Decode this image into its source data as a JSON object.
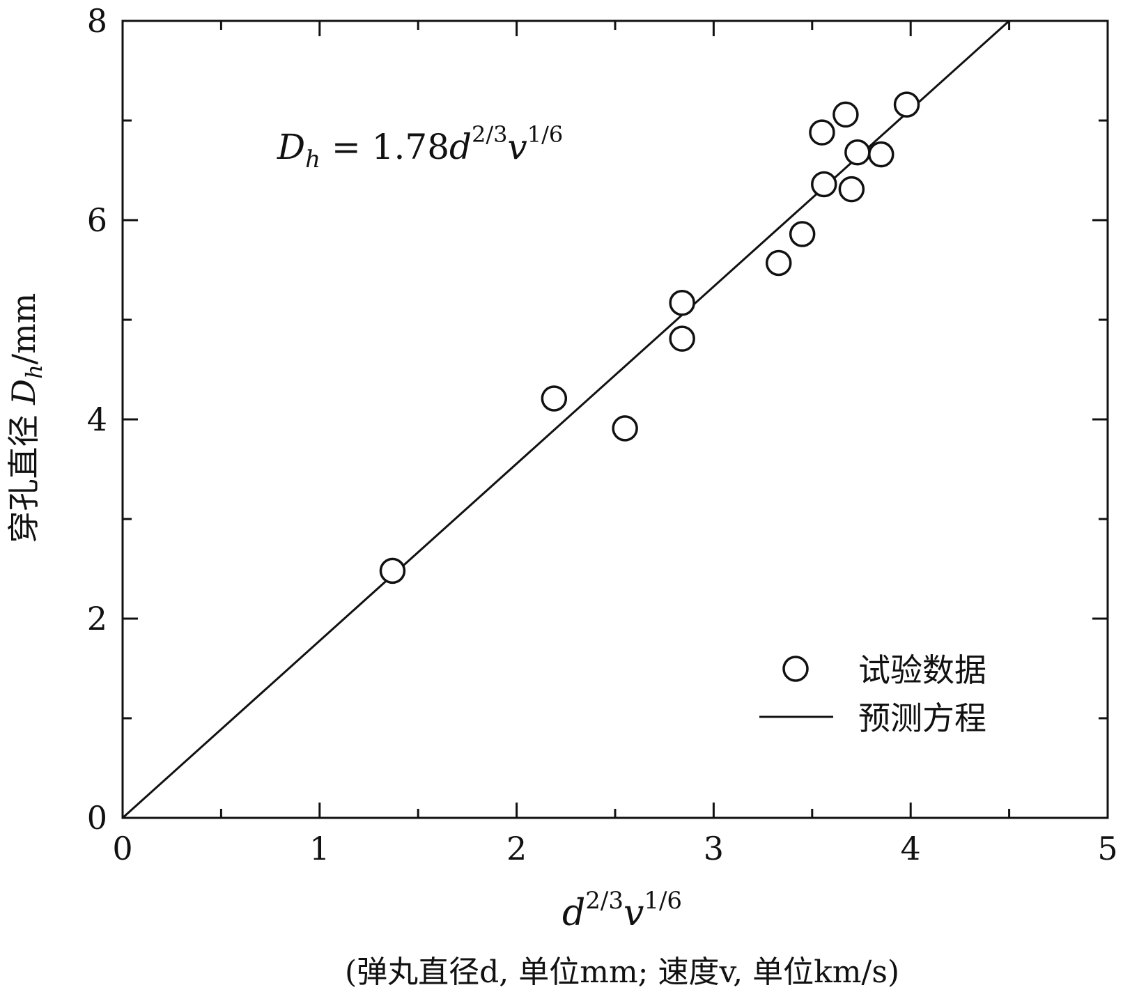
{
  "chart_data": {
    "type": "scatter",
    "title": "",
    "xlim": [
      0,
      5
    ],
    "ylim": [
      0,
      8
    ],
    "x_ticks": [
      0,
      1,
      2,
      3,
      4,
      5
    ],
    "x_minor_ticks": [
      0.5,
      1.5,
      2.5,
      3.5,
      4.5
    ],
    "y_ticks": [
      0,
      2,
      4,
      6,
      8
    ],
    "y_minor_ticks": [
      1,
      3,
      5,
      7
    ],
    "x_tick_labels": [
      "0",
      "1",
      "2",
      "3",
      "4",
      "5"
    ],
    "y_tick_labels": [
      "0",
      "2",
      "4",
      "6",
      "8"
    ],
    "xlabel": {
      "base1": "d",
      "sup1": "2/3",
      "base2": "v",
      "sup2": "1/6"
    },
    "xlabel_note": "(弹丸直径d, 单位mm; 速度v, 单位km/s)",
    "ylabel": {
      "prefix": "穿孔直径 ",
      "var": "D",
      "sub": "h",
      "unit": "/mm"
    },
    "equation": {
      "lhs": "D",
      "lhs_sub": "h",
      "eq": " = 1.78",
      "b1": "d",
      "s1": "2/3",
      "b2": "v",
      "s2": "1/6"
    },
    "grid": false,
    "legend_position": "bottom-right",
    "series": [
      {
        "name": "试验数据",
        "type": "scatter",
        "marker": "open-circle",
        "x": [
          1.37,
          2.19,
          2.55,
          2.84,
          2.84,
          3.33,
          3.45,
          3.55,
          3.56,
          3.67,
          3.7,
          3.73,
          3.85,
          3.98
        ],
        "y": [
          2.48,
          4.21,
          3.91,
          4.81,
          5.17,
          5.57,
          5.86,
          6.88,
          6.36,
          7.06,
          6.31,
          6.68,
          6.66,
          7.16
        ]
      },
      {
        "name": "预测方程",
        "type": "line",
        "x": [
          0,
          4.5
        ],
        "y": [
          0,
          8.0
        ]
      }
    ]
  },
  "colors": {
    "axis": "#111111",
    "marker_fill": "#ffffff",
    "background": "#ffffff"
  }
}
